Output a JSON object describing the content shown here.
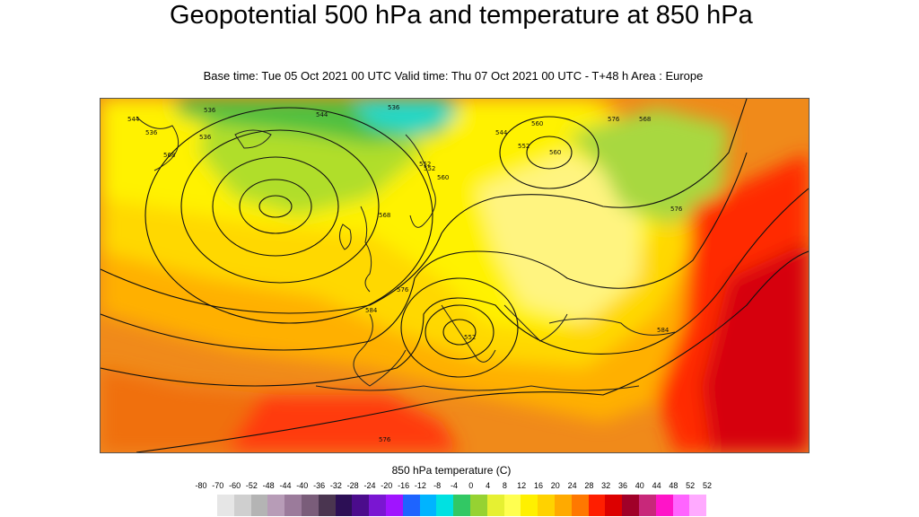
{
  "header": {
    "title": "Geopotential 500 hPa and temperature at 850 hPa",
    "subtitle": "Base time: Tue 05 Oct 2021 00 UTC Valid time: Thu 07 Oct 2021 00 UTC - T+48 h Area : Europe"
  },
  "map": {
    "contour_labels": [
      "536",
      "536",
      "536",
      "544",
      "552",
      "560",
      "568",
      "576",
      "584",
      "576",
      "568",
      "576",
      "560",
      "552",
      "544",
      "536",
      "568",
      "584",
      "576",
      "552",
      "544",
      "552",
      "560"
    ]
  },
  "legend": {
    "title": "850 hPa temperature (C)",
    "ticks": [
      "-80",
      "-70",
      "-60",
      "-52",
      "-48",
      "-44",
      "-40",
      "-36",
      "-32",
      "-28",
      "-24",
      "-20",
      "-16",
      "-12",
      "-8",
      "-4",
      "0",
      "4",
      "8",
      "12",
      "16",
      "20",
      "24",
      "28",
      "32",
      "36",
      "40",
      "44",
      "48",
      "52",
      "52"
    ],
    "colors": [
      "#e6e6e6",
      "#cfcfcf",
      "#b4b4b4",
      "#b79cb7",
      "#9b7b9b",
      "#7a5d7a",
      "#4a3550",
      "#2c0f55",
      "#4b0c8c",
      "#7a16d2",
      "#a014ff",
      "#1e64ff",
      "#00b4ff",
      "#00e1e1",
      "#32c864",
      "#96d232",
      "#e6f032",
      "#ffff50",
      "#fff000",
      "#ffd200",
      "#ffaa00",
      "#ff7800",
      "#ff1e00",
      "#dc0000",
      "#a00028",
      "#c8287a",
      "#ff14c8",
      "#ff64ff",
      "#ffaaff",
      "#f0c8f0",
      "#e6e6e6"
    ]
  }
}
